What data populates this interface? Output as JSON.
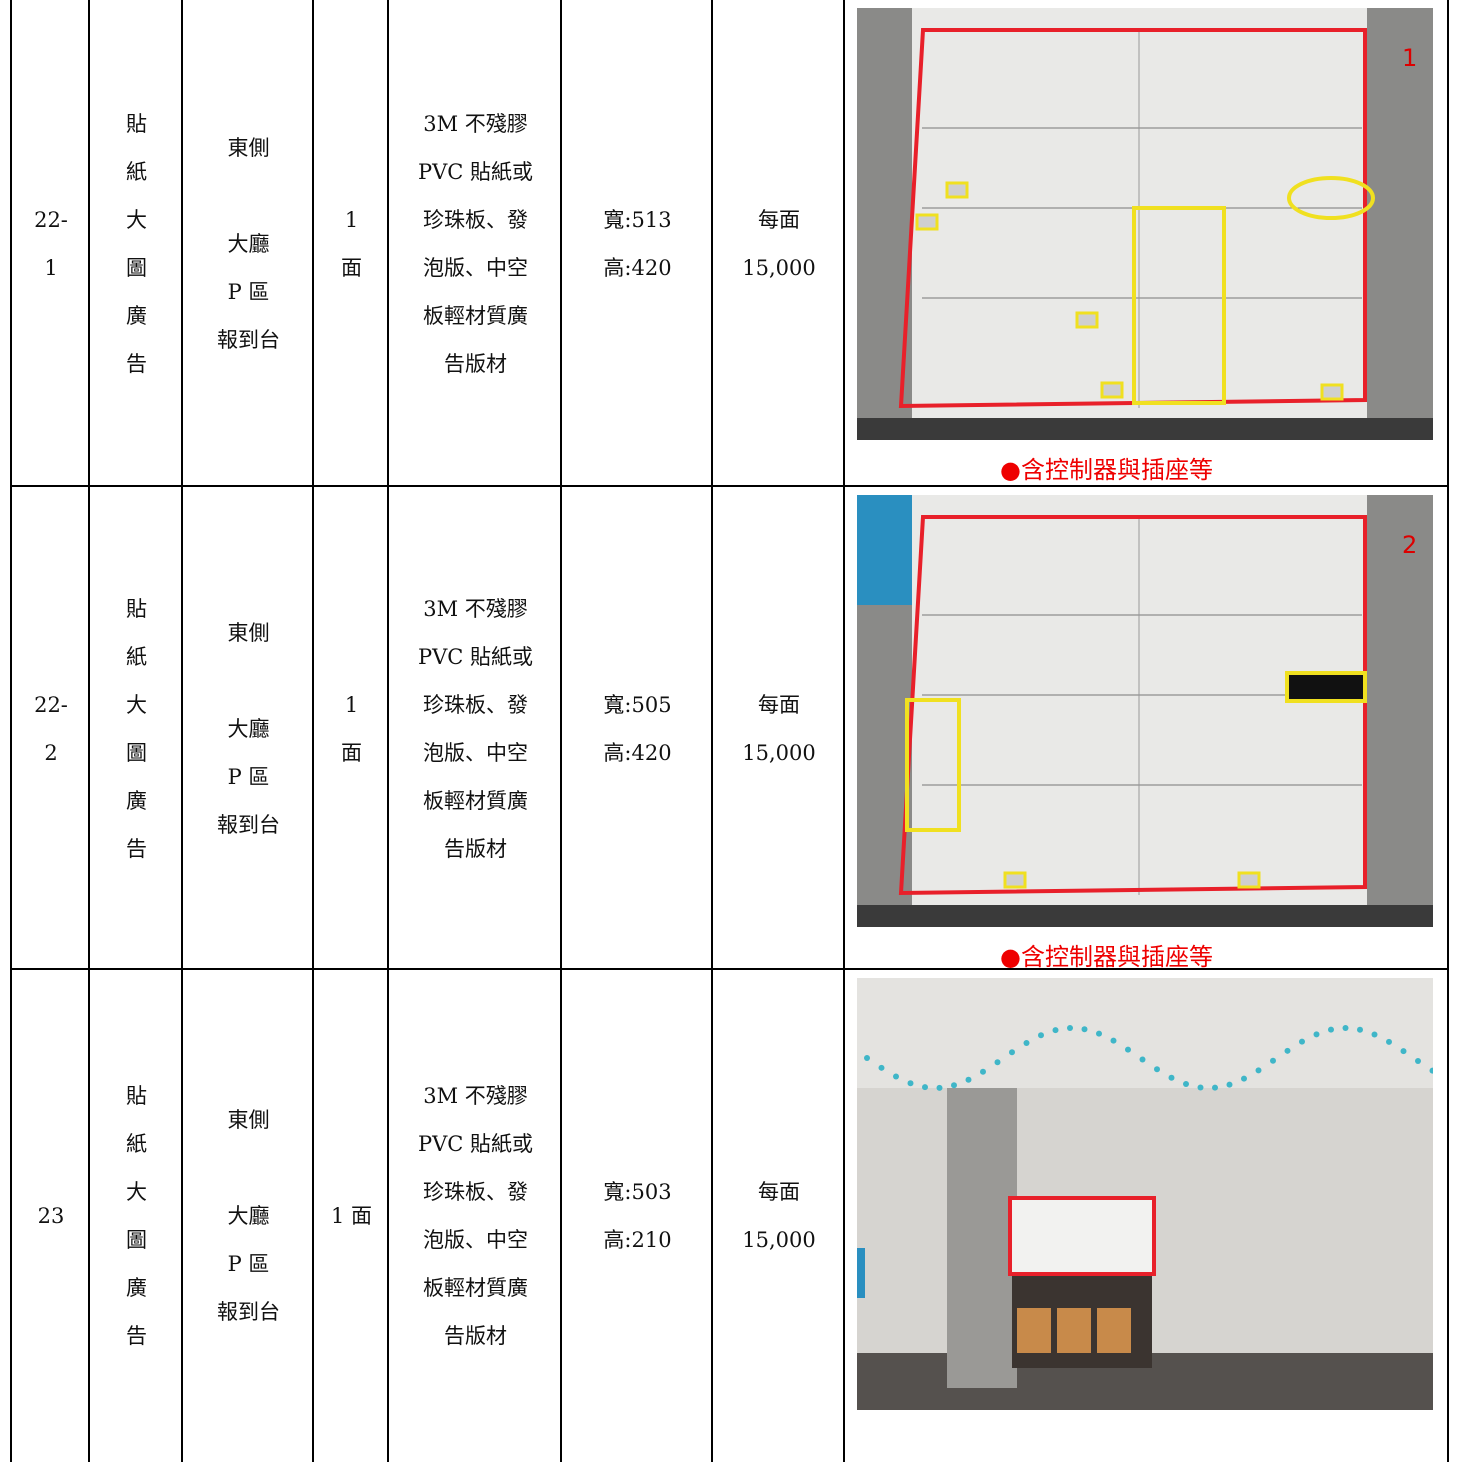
{
  "table": {
    "rows": [
      {
        "id": [
          "22-",
          "1"
        ],
        "type": [
          "貼",
          "紙",
          "大",
          "圖",
          "廣",
          "告"
        ],
        "location": [
          "東側",
          "大廳",
          "P 區",
          "報到台"
        ],
        "quantity": [
          "1",
          "面"
        ],
        "material": [
          "3M 不殘膠",
          "PVC 貼紙或",
          "珍珠板、發",
          "泡版、中空",
          "板輕材質廣",
          "告版材"
        ],
        "size": [
          "寬:513",
          "高:420"
        ],
        "price": [
          "每面",
          "15,000"
        ],
        "photo_label": "1",
        "note": "●含控制器與插座等"
      },
      {
        "id": [
          "22-",
          "2"
        ],
        "type": [
          "貼",
          "紙",
          "大",
          "圖",
          "廣",
          "告"
        ],
        "location": [
          "東側",
          "大廳",
          "P 區",
          "報到台"
        ],
        "quantity": [
          "1",
          "面"
        ],
        "material": [
          "3M 不殘膠",
          "PVC 貼紙或",
          "珍珠板、發",
          "泡版、中空",
          "板輕材質廣",
          "告版材"
        ],
        "size": [
          "寬:505",
          "高:420"
        ],
        "price": [
          "每面",
          "15,000"
        ],
        "photo_label": "2",
        "note": "●含控制器與插座等"
      },
      {
        "id": [
          "23"
        ],
        "type": [
          "貼",
          "紙",
          "大",
          "圖",
          "廣",
          "告"
        ],
        "location": [
          "東側",
          "大廳",
          "P 區",
          "報到台"
        ],
        "quantity": [
          "1 面"
        ],
        "material": [
          "3M 不殘膠",
          "PVC 貼紙或",
          "珍珠板、發",
          "泡版、中空",
          "板輕材質廣",
          "告版材"
        ],
        "size": [
          "寬:503",
          "高:210"
        ],
        "price": [
          "每面",
          "15,000"
        ]
      }
    ]
  }
}
